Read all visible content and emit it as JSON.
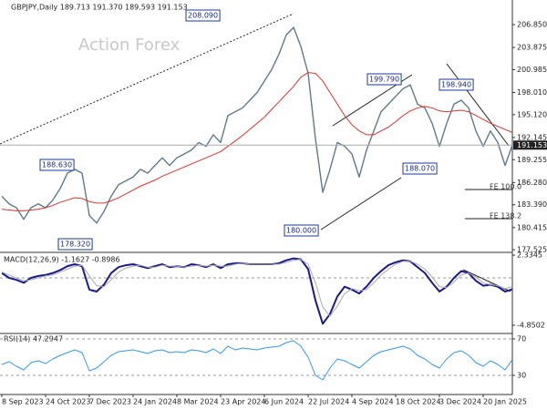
{
  "chart_data": [
    {
      "type": "line",
      "title": "GBPJPY,Daily  189.713 191.370 189.593 191.153",
      "watermark": "Action Forex",
      "categories": [
        "8 Sep 2023",
        null,
        null,
        null,
        null,
        null,
        "24 Oct 2023",
        null,
        null,
        null,
        null,
        null,
        "7 Dec 2023",
        null,
        null,
        null,
        null,
        null,
        "24 Jan 2024",
        null,
        null,
        null,
        null,
        null,
        "8 Mar 2024",
        null,
        null,
        null,
        null,
        null,
        "23 Apr 2024",
        null,
        null,
        null,
        null,
        null,
        "6 Jun 2024",
        null,
        null,
        null,
        null,
        null,
        "22 Jul 2024",
        null,
        null,
        null,
        null,
        null,
        "4 Sep 2024",
        null,
        null,
        null,
        null,
        null,
        "18 Oct 2024",
        null,
        null,
        null,
        null,
        null,
        "3 Dec 2024",
        null,
        null,
        null,
        null,
        null,
        "20 Jan 2025",
        null,
        null,
        null,
        null
      ],
      "series": [
        {
          "color": "#5f7a8a",
          "values": [
            184.5,
            183.5,
            183,
            181.5,
            183,
            183.5,
            183,
            184,
            185.5,
            187.5,
            188,
            187.5,
            182,
            181,
            182.5,
            184.5,
            186,
            186.5,
            187,
            188,
            187.5,
            188.5,
            189.5,
            188.5,
            189.5,
            190,
            190.5,
            191.5,
            191,
            192.5,
            191.5,
            195,
            195.5,
            196,
            197,
            198,
            199.5,
            201,
            203,
            205.5,
            206.5,
            204,
            200.5,
            192,
            185,
            188,
            191.5,
            191,
            190,
            187,
            190.5,
            193,
            195.5,
            196.5,
            197.5,
            198.5,
            199,
            196.5,
            196,
            194,
            191,
            194,
            196.5,
            197,
            196,
            193,
            191,
            193,
            191.5,
            188.5,
            191.153
          ]
        },
        {
          "color": "#e53030",
          "values": [
            182.8,
            182.7,
            182.6,
            182.6,
            182.7,
            182.8,
            183.0,
            183.3,
            183.7,
            184.0,
            184.3,
            184.2,
            183.8,
            183.6,
            183.6,
            183.9,
            184.3,
            184.8,
            185.3,
            185.8,
            186.2,
            186.6,
            187.1,
            187.5,
            187.9,
            188.3,
            188.7,
            189.1,
            189.5,
            189.9,
            190.3,
            191.0,
            191.7,
            192.4,
            193.2,
            194.0,
            194.8,
            195.8,
            196.8,
            197.8,
            198.8,
            200.0,
            200.6,
            200.5,
            199.5,
            198.0,
            196.5,
            195.0,
            193.8,
            193.0,
            192.5,
            192.5,
            193.0,
            193.5,
            194.2,
            195.0,
            195.6,
            196.0,
            196.2,
            196.0,
            195.6,
            195.5,
            195.6,
            195.7,
            195.5,
            195.0,
            194.5,
            194.0,
            193.6,
            193.2,
            192.8
          ]
        }
      ],
      "ylim": [
        177.3,
        209.7
      ],
      "yticks": [
        {
          "value": 206.85,
          "label": "206.850"
        },
        203.875,
        200.985,
        {
          "value": 198.01,
          "label": "198.010"
        },
        {
          "value": 195.12,
          "label": "195.120"
        },
        192.145,
        189.255,
        {
          "value": 186.28,
          "label": "186.280"
        },
        {
          "value": 183.39,
          "label": "183.390"
        },
        180.415,
        177.525
      ],
      "last_price": 191.153,
      "annotations": [
        "208.090",
        "199.790",
        "198.940",
        "188.630",
        "178.320",
        "180.000",
        "188.070",
        "FE 100.0",
        "FE 138.2"
      ]
    },
    {
      "type": "line",
      "title": "MACD(12,26,9) -1.1627 -0.8986",
      "series": [
        {
          "color": "#1a1a8c",
          "values": [
            0.5,
            0,
            -0.2,
            -0.5,
            0,
            0.2,
            0.3,
            0.5,
            0.8,
            1.2,
            1.4,
            1.2,
            -1.2,
            -1.4,
            -0.7,
            0.5,
            1.1,
            1.3,
            1.4,
            1.2,
            1.0,
            1.2,
            1.4,
            1.1,
            1.2,
            1.1,
            1.4,
            1.3,
            1.1,
            1.4,
            1.0,
            1.4,
            1.5,
            1.5,
            1.4,
            1.4,
            1.4,
            1.4,
            1.5,
            1.8,
            2.0,
            1.9,
            0.9,
            -2.3,
            -4.7,
            -3.7,
            -1.9,
            -0.9,
            -1.2,
            -1.6,
            -0.9,
            0,
            0.7,
            1.3,
            1.6,
            1.8,
            1.7,
            1.1,
            0.5,
            -0.5,
            -1.4,
            -0.9,
            0,
            0.7,
            0.5,
            -0.3,
            -0.8,
            -0.7,
            -0.9,
            -1.4,
            -1.1627
          ]
        },
        {
          "color": "#aaaaaa",
          "values": [
            0.6,
            0.3,
            0.0,
            -0.3,
            -0.2,
            0.0,
            0.2,
            0.3,
            0.6,
            0.9,
            1.2,
            1.3,
            0.2,
            -0.8,
            -0.9,
            -0.2,
            0.6,
            1.0,
            1.2,
            1.3,
            1.1,
            1.1,
            1.3,
            1.2,
            1.2,
            1.1,
            1.2,
            1.3,
            1.2,
            1.3,
            1.2,
            1.2,
            1.4,
            1.5,
            1.4,
            1.4,
            1.4,
            1.4,
            1.4,
            1.6,
            1.8,
            1.9,
            1.4,
            -0.5,
            -3.0,
            -3.9,
            -2.9,
            -1.6,
            -1.1,
            -1.3,
            -1.2,
            -0.5,
            0.3,
            0.9,
            1.4,
            1.7,
            1.7,
            1.4,
            0.9,
            0.1,
            -0.9,
            -1.0,
            -0.4,
            0.3,
            0.5,
            0.1,
            -0.5,
            -0.7,
            -0.8,
            -1.1,
            -0.8986
          ]
        }
      ],
      "ylim": [
        -5.69,
        2.52
      ],
      "yticks": [
        2.3345,
        -4.8502
      ],
      "levels": [
        0
      ]
    },
    {
      "type": "line",
      "title": "RSI(14) 47.2947",
      "series": [
        {
          "color": "#3399ee",
          "values": [
            42,
            45,
            40,
            36,
            44,
            46,
            43,
            48,
            52,
            55,
            58,
            55,
            35,
            38,
            45,
            52,
            56,
            57,
            58,
            56,
            54,
            57,
            58,
            55,
            56,
            55,
            58,
            57,
            55,
            59,
            54,
            62,
            58,
            60,
            59,
            58,
            60,
            61,
            62,
            66,
            68,
            62,
            50,
            30,
            25,
            38,
            48,
            46,
            42,
            38,
            45,
            52,
            56,
            58,
            60,
            62,
            59,
            52,
            48,
            42,
            38,
            48,
            55,
            57,
            52,
            44,
            40,
            46,
            42,
            36,
            47.2947
          ]
        }
      ],
      "ylim": [
        10,
        75
      ],
      "yticks": [
        70,
        30
      ]
    }
  ]
}
